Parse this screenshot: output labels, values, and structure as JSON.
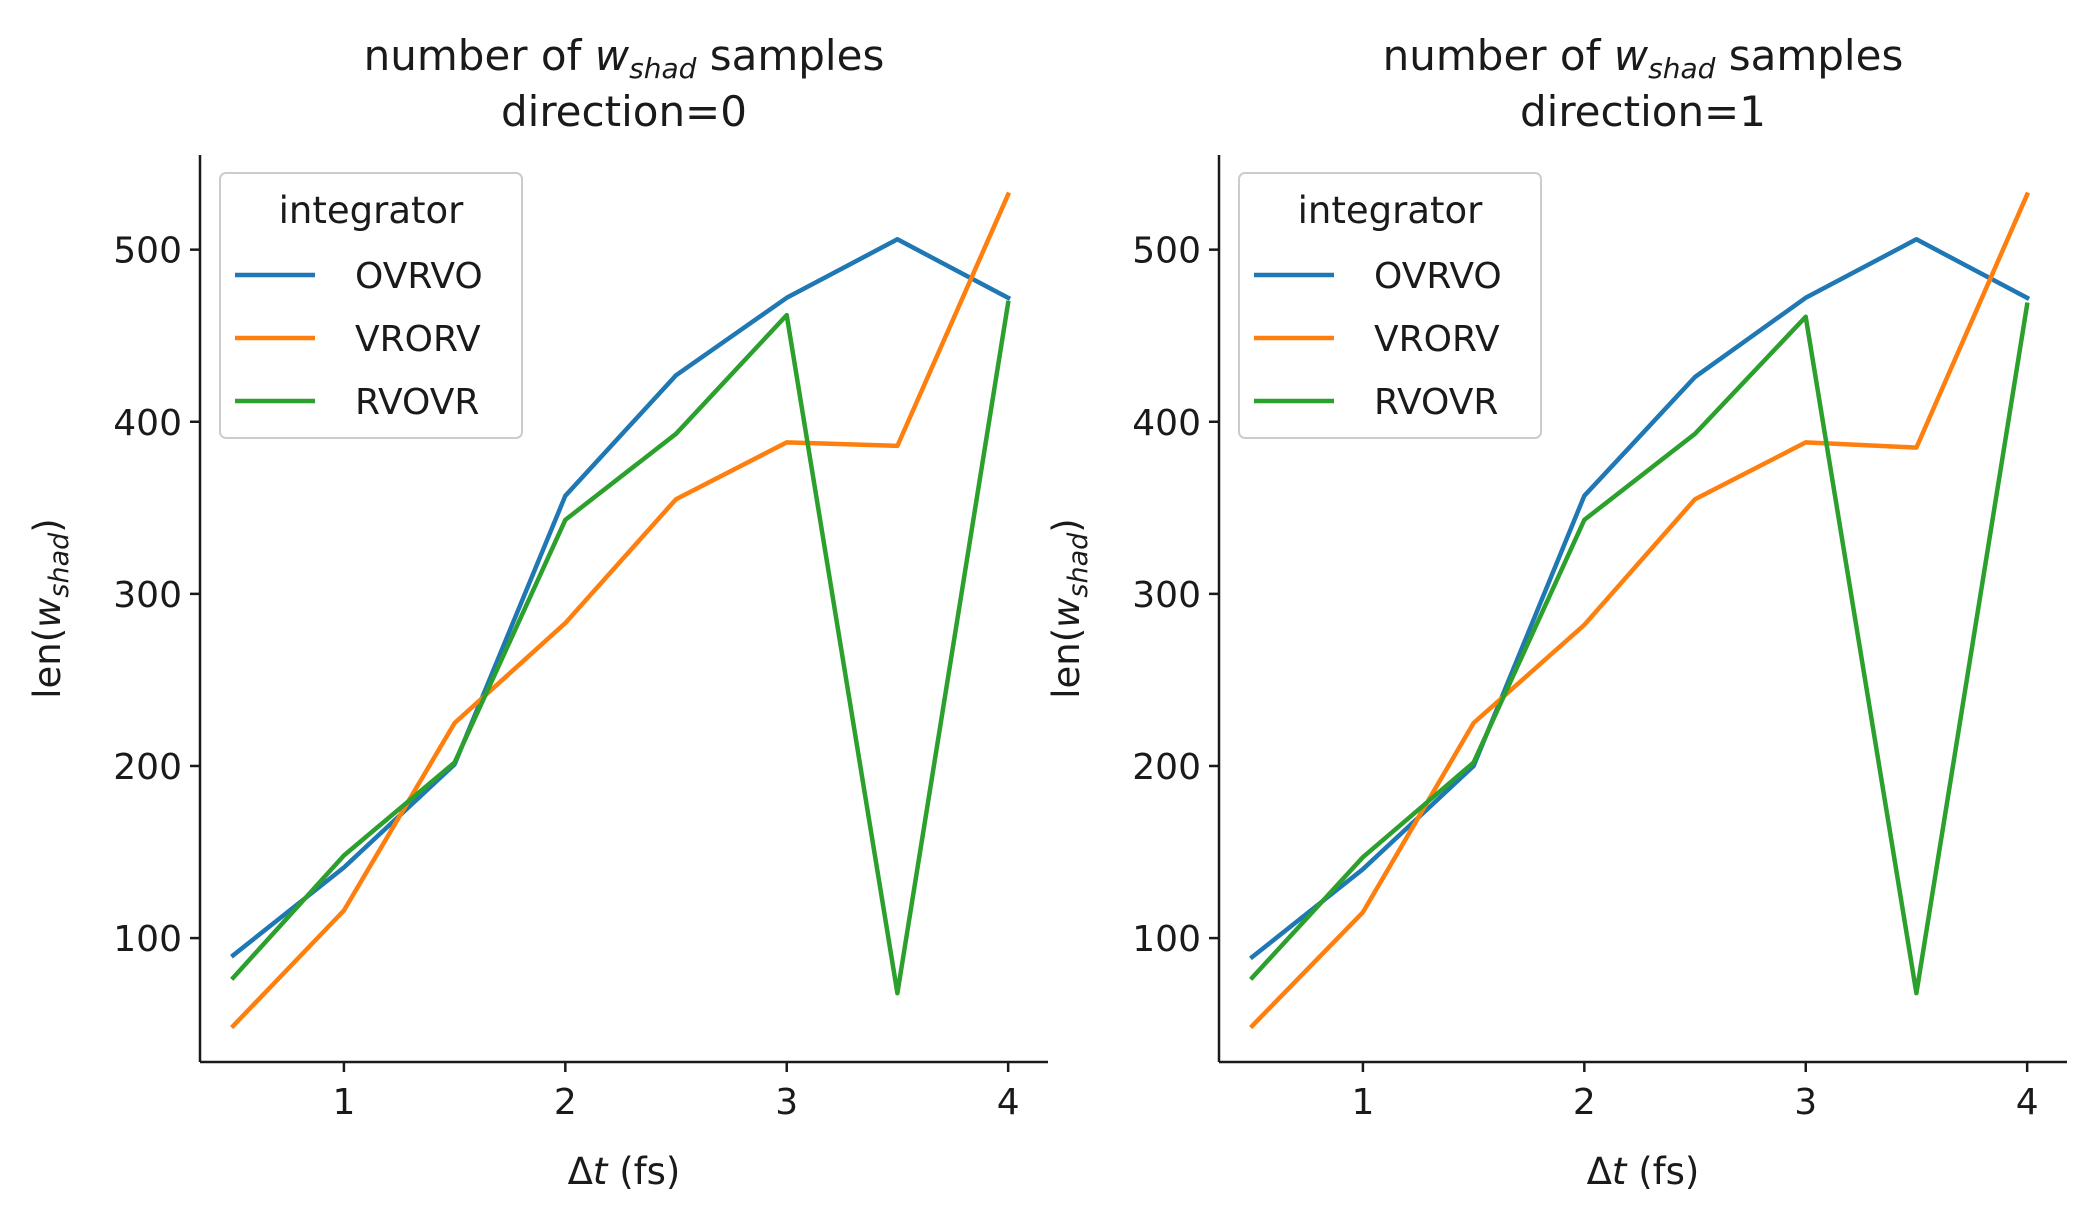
{
  "chart_data": [
    {
      "type": "line",
      "title_prefix": "number of ",
      "title_var": "w",
      "title_sub": "shad",
      "title_suffix": " samples",
      "title_line2": "direction=0",
      "xlabel_prefix": "Δ",
      "xlabel_var": "t",
      "xlabel_suffix": " (fs)",
      "ylabel_prefix": "len(",
      "ylabel_var": "w",
      "ylabel_sub": "shad",
      "ylabel_suffix": ")",
      "xlim": [
        0.35,
        4.18
      ],
      "ylim": [
        28,
        555
      ],
      "xticks": [
        1,
        2,
        3,
        4
      ],
      "yticks": [
        100,
        200,
        300,
        400,
        500
      ],
      "legend_title": "integrator",
      "legend_position": "upper-left",
      "x": [
        0.5,
        1.0,
        1.5,
        2.0,
        2.5,
        3.0,
        3.5,
        4.0
      ],
      "series": [
        {
          "name": "OVRVO",
          "color": "#1f77b4",
          "values": [
            90,
            141,
            201,
            357,
            427,
            472,
            506,
            472
          ]
        },
        {
          "name": "VRORV",
          "color": "#ff7f0e",
          "values": [
            49,
            116,
            225,
            283,
            355,
            388,
            386,
            532
          ]
        },
        {
          "name": "RVOVR",
          "color": "#2ca02c",
          "values": [
            77,
            148,
            202,
            343,
            393,
            462,
            68,
            469
          ]
        }
      ]
    },
    {
      "type": "line",
      "title_prefix": "number of ",
      "title_var": "w",
      "title_sub": "shad",
      "title_suffix": " samples",
      "title_line2": "direction=1",
      "xlabel_prefix": "Δ",
      "xlabel_var": "t",
      "xlabel_suffix": " (fs)",
      "ylabel_prefix": "len(",
      "ylabel_var": "w",
      "ylabel_sub": "shad",
      "ylabel_suffix": ")",
      "xlim": [
        0.35,
        4.18
      ],
      "ylim": [
        28,
        555
      ],
      "xticks": [
        1,
        2,
        3,
        4
      ],
      "yticks": [
        100,
        200,
        300,
        400,
        500
      ],
      "legend_title": "integrator",
      "legend_position": "upper-left",
      "x": [
        0.5,
        1.0,
        1.5,
        2.0,
        2.5,
        3.0,
        3.5,
        4.0
      ],
      "series": [
        {
          "name": "OVRVO",
          "color": "#1f77b4",
          "values": [
            89,
            140,
            200,
            357,
            426,
            472,
            506,
            472
          ]
        },
        {
          "name": "VRORV",
          "color": "#ff7f0e",
          "values": [
            49,
            115,
            225,
            282,
            355,
            388,
            385,
            532
          ]
        },
        {
          "name": "RVOVR",
          "color": "#2ca02c",
          "values": [
            77,
            147,
            202,
            343,
            393,
            461,
            68,
            468
          ]
        }
      ]
    }
  ]
}
